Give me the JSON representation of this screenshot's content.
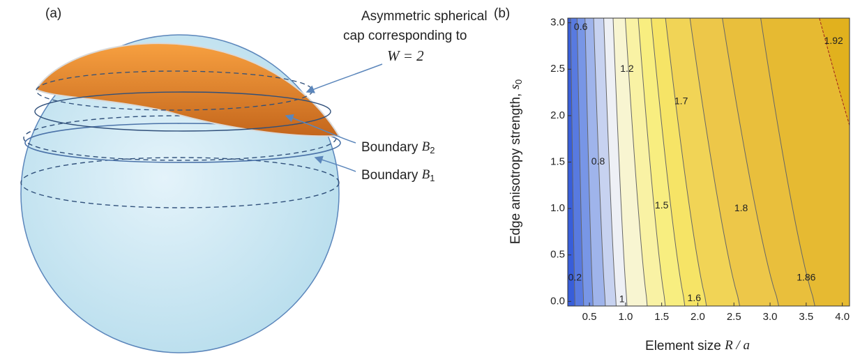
{
  "panel_labels": [
    "(a)",
    "(b)"
  ],
  "cap_annotation": {
    "lines": [
      "Asymmetric spherical",
      "cap corresponding to"
    ],
    "equation": "W = 2"
  },
  "boundaries": [
    {
      "text": "Boundary",
      "symbol": "B",
      "subscript": "2"
    },
    {
      "text": "Boundary",
      "symbol": "B",
      "subscript": "1"
    }
  ],
  "chart_data": {
    "type": "contour",
    "xlabel": {
      "text": "Element size",
      "symbol": "R / a"
    },
    "ylabel": {
      "text": "Edge anisotropy strength,",
      "symbol": "s",
      "subscript": "0"
    },
    "xlim": [
      0.2,
      4.1
    ],
    "ylim": [
      -0.05,
      3.05
    ],
    "xticks": [
      0.5,
      {
        "value": 1,
        "label": "1.0"
      },
      1.5,
      {
        "value": 2,
        "label": "2.0"
      },
      2.5,
      {
        "value": 3,
        "label": "3.0"
      },
      3.5,
      {
        "value": 4,
        "label": "4.0"
      }
    ],
    "yticks": [
      {
        "value": 0,
        "label": "0.0"
      },
      0.5,
      {
        "value": 1,
        "label": "1.0"
      },
      1.5,
      {
        "value": 2,
        "label": "2.0"
      },
      2.5,
      {
        "value": 3,
        "label": "3.0"
      }
    ],
    "contour_levels": [
      0.2,
      0.4,
      0.6,
      0.8,
      1,
      1.2,
      1.4,
      1.5,
      1.6,
      1.7,
      1.8,
      1.86,
      1.9,
      1.92
    ]
  }
}
